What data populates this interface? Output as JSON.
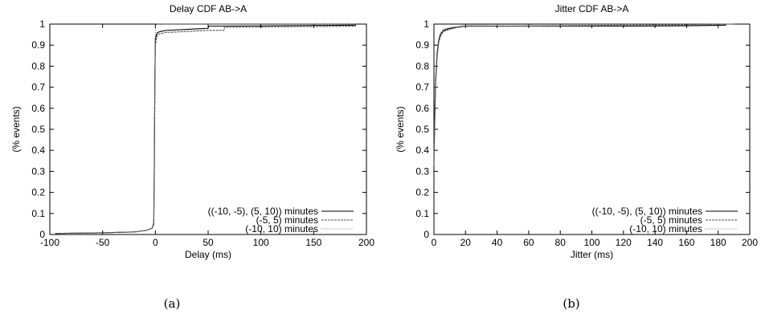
{
  "chart_data": [
    {
      "type": "line",
      "title": "Delay CDF AB->A",
      "xlabel": "Delay (ms)",
      "ylabel": "(% events)",
      "xlim": [
        -100,
        200
      ],
      "ylim": [
        0,
        1
      ],
      "xticks": [
        "-100",
        "-50",
        "0",
        "50",
        "100",
        "150",
        "200"
      ],
      "yticks": [
        "0",
        "0.1",
        "0.2",
        "0.3",
        "0.4",
        "0.5",
        "0.6",
        "0.7",
        "0.8",
        "0.9",
        "1"
      ],
      "grid": false,
      "legend": "bottom-right",
      "caption": "(a)",
      "series": [
        {
          "name": "((-10, -5), (5, 10)) minutes",
          "style": "solid",
          "x": [
            -95,
            -50,
            -20,
            -8,
            -3,
            -1.5,
            -1,
            -0.5,
            0,
            1,
            2,
            5,
            10,
            30,
            50,
            50.5,
            190
          ],
          "y": [
            0.005,
            0.008,
            0.012,
            0.02,
            0.03,
            0.05,
            0.3,
            0.7,
            0.93,
            0.95,
            0.96,
            0.965,
            0.97,
            0.975,
            0.98,
            0.99,
            0.995
          ]
        },
        {
          "name": "(-5, 5) minutes",
          "style": "dashed",
          "x": [
            -95,
            -50,
            -20,
            -8,
            -3,
            -1.5,
            -1,
            -0.5,
            0,
            1,
            2,
            5,
            10,
            30,
            50,
            65,
            65.5,
            190
          ],
          "y": [
            0.005,
            0.008,
            0.012,
            0.02,
            0.03,
            0.06,
            0.35,
            0.75,
            0.9,
            0.93,
            0.95,
            0.955,
            0.96,
            0.965,
            0.97,
            0.97,
            0.985,
            0.99
          ]
        },
        {
          "name": "(-10, 10) minutes",
          "style": "dotted",
          "x": [
            -95,
            -60,
            -20,
            -8,
            -3,
            -1.5,
            -1,
            -0.5,
            0,
            0.5,
            1,
            190
          ],
          "y": [
            0.005,
            0.008,
            0.012,
            0.02,
            0.03,
            0.05,
            0.3,
            0.7,
            0.99,
            0.995,
            1.0,
            1.0
          ]
        }
      ]
    },
    {
      "type": "line",
      "title": "Jitter CDF AB->A",
      "xlabel": "Jitter (ms)",
      "ylabel": "(% events)",
      "xlim": [
        0,
        200
      ],
      "ylim": [
        0,
        1
      ],
      "xticks": [
        "0",
        "20",
        "40",
        "60",
        "80",
        "100",
        "120",
        "140",
        "160",
        "180",
        "200"
      ],
      "yticks": [
        "0",
        "0.1",
        "0.2",
        "0.3",
        "0.4",
        "0.5",
        "0.6",
        "0.7",
        "0.8",
        "0.9",
        "1"
      ],
      "grid": false,
      "legend": "bottom-right",
      "caption": "(b)",
      "series": [
        {
          "name": "((-10, -5), (5, 10)) minutes",
          "style": "solid",
          "x": [
            0,
            0.5,
            1,
            2,
            3,
            4,
            6,
            10,
            15,
            20,
            40,
            80,
            120,
            160,
            185
          ],
          "y": [
            0.35,
            0.55,
            0.72,
            0.86,
            0.92,
            0.95,
            0.97,
            0.98,
            0.985,
            0.99,
            0.99,
            0.99,
            0.99,
            0.992,
            0.995
          ]
        },
        {
          "name": "(-5, 5) minutes",
          "style": "dashed",
          "x": [
            0,
            0.5,
            1,
            2,
            3,
            4,
            6,
            10,
            15,
            20,
            40,
            80,
            120,
            160,
            190
          ],
          "y": [
            0.33,
            0.52,
            0.7,
            0.84,
            0.91,
            0.94,
            0.965,
            0.975,
            0.985,
            0.99,
            0.99,
            0.992,
            0.995,
            0.997,
            1.0
          ]
        },
        {
          "name": "(-10, 10) minutes",
          "style": "dotted",
          "x": [
            0,
            0.5,
            1,
            2,
            3,
            4,
            6,
            10,
            15,
            20,
            40,
            80,
            120,
            160,
            190
          ],
          "y": [
            0.36,
            0.56,
            0.74,
            0.87,
            0.93,
            0.955,
            0.975,
            0.985,
            0.99,
            0.995,
            0.997,
            0.998,
            0.999,
            1.0,
            1.0
          ]
        }
      ]
    }
  ]
}
